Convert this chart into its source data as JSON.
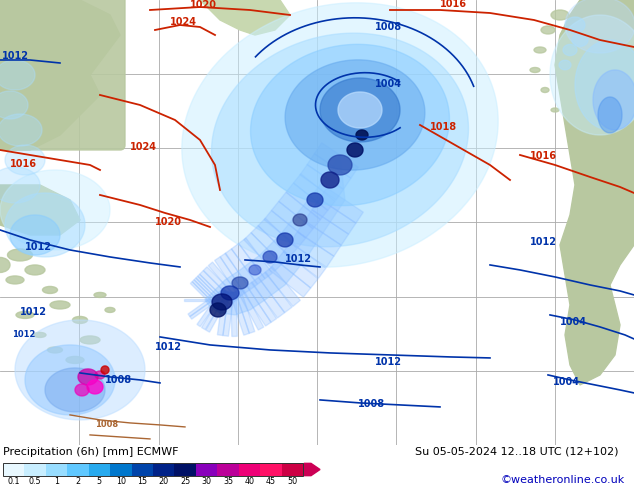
{
  "title": "Precipitation (6h) [mm] ECMWF",
  "date_str": "Su 05-05-2024 12..18 UTC (12+102)",
  "credit": "©weatheronline.co.uk",
  "colorbar_labels": [
    "0.1",
    "0.5",
    "1",
    "2",
    "5",
    "10",
    "15",
    "20",
    "25",
    "30",
    "35",
    "40",
    "45",
    "50"
  ],
  "colorbar_colors": [
    "#e8f8ff",
    "#c8eeff",
    "#98ddff",
    "#60c8ff",
    "#28aaee",
    "#0077cc",
    "#0044aa",
    "#002288",
    "#001166",
    "#8800bb",
    "#bb0099",
    "#ee0077",
    "#ff1166",
    "#cc0044"
  ],
  "ocean_bg": "#c8ccd0",
  "land_color": "#b8c8a0",
  "land_color2": "#c8d8b0",
  "grid_color": "#aaaaaa",
  "blue_isobar": "#0033aa",
  "red_isobar": "#cc2200",
  "brown_isobar": "#aa6633",
  "precip_light": "#aaddff",
  "precip_mid": "#55aaee",
  "precip_dark": "#1144aa",
  "precip_intense": "#0022aa",
  "precip_purple": "#9900cc",
  "precip_pink": "#ff00aa",
  "title_color": "#000000",
  "credit_color": "#0000bb",
  "bottom_bg": "#ffffff",
  "arrow_color": "#cc0055",
  "font_size_isobar": 7,
  "font_size_label": 7.5,
  "font_size_credit": 8
}
